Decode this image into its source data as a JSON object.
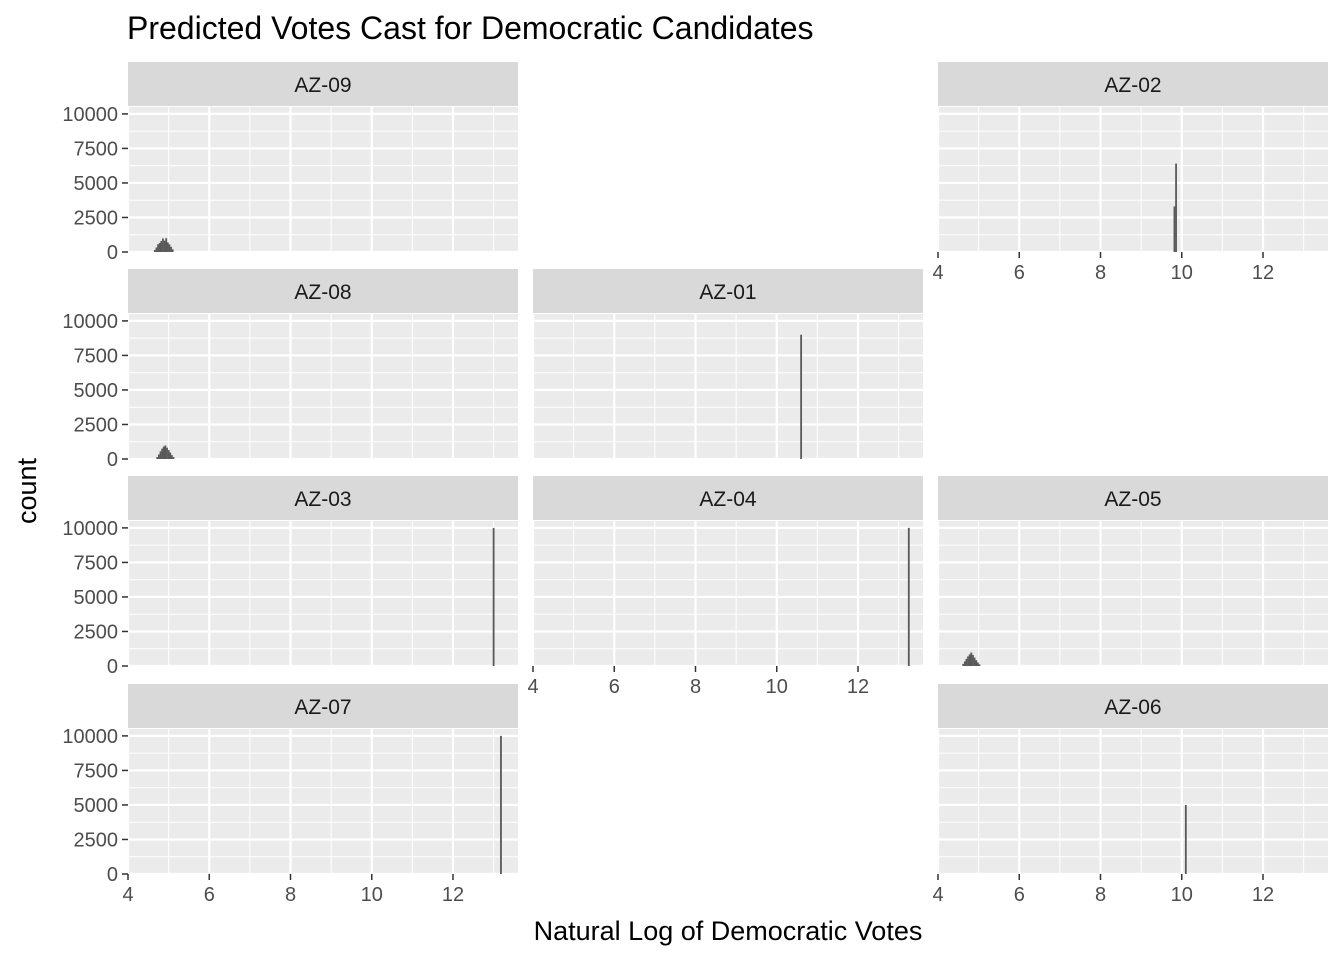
{
  "chart_data": {
    "type": "histogram",
    "title": "Predicted Votes Cast for Democratic Candidates",
    "xlabel": "Natural Log of Democratic Votes",
    "ylabel": "count",
    "xlim": [
      4,
      13.6
    ],
    "ylim": [
      0,
      10500
    ],
    "x_ticks": [
      4,
      6,
      8,
      10,
      12
    ],
    "x_minor": [
      5,
      7,
      9,
      11,
      13
    ],
    "y_ticks": [
      0,
      2500,
      5000,
      7500,
      10000
    ],
    "y_tick_labels": [
      "0",
      "2500",
      "5000",
      "7500",
      "10000"
    ],
    "y_minor": [
      1250,
      3750,
      6250,
      8750
    ],
    "grid": true,
    "layout": "facet_wrap 4 rows x 3 columns",
    "colors": {
      "panel_bg": "#EBEBEB",
      "strip_bg": "#D9D9D9",
      "grid": "#FFFFFF",
      "bars": "#595959"
    },
    "panels": [
      {
        "label": "AZ-09",
        "row": 0,
        "col": 0,
        "bars": [
          {
            "x": 4.66,
            "count": 140
          },
          {
            "x": 4.7,
            "count": 330
          },
          {
            "x": 4.74,
            "count": 560
          },
          {
            "x": 4.78,
            "count": 650
          },
          {
            "x": 4.82,
            "count": 800
          },
          {
            "x": 4.86,
            "count": 980
          },
          {
            "x": 4.9,
            "count": 820
          },
          {
            "x": 4.94,
            "count": 1000
          },
          {
            "x": 4.98,
            "count": 700
          },
          {
            "x": 5.02,
            "count": 560
          },
          {
            "x": 5.06,
            "count": 380
          },
          {
            "x": 5.1,
            "count": 200
          }
        ]
      },
      {
        "label": "AZ-02",
        "row": 0,
        "col": 2,
        "bars": [
          {
            "x": 9.82,
            "count": 3300
          },
          {
            "x": 9.86,
            "count": 6400
          }
        ]
      },
      {
        "label": "AZ-08",
        "row": 1,
        "col": 0,
        "bars": [
          {
            "x": 4.72,
            "count": 140
          },
          {
            "x": 4.76,
            "count": 330
          },
          {
            "x": 4.8,
            "count": 560
          },
          {
            "x": 4.84,
            "count": 750
          },
          {
            "x": 4.88,
            "count": 900
          },
          {
            "x": 4.92,
            "count": 980
          },
          {
            "x": 4.96,
            "count": 820
          },
          {
            "x": 5.0,
            "count": 650
          },
          {
            "x": 5.04,
            "count": 470
          },
          {
            "x": 5.08,
            "count": 280
          },
          {
            "x": 5.12,
            "count": 140
          }
        ]
      },
      {
        "label": "AZ-01",
        "row": 1,
        "col": 1,
        "bars": [
          {
            "x": 10.6,
            "count": 9000
          }
        ]
      },
      {
        "label": "AZ-03",
        "row": 2,
        "col": 0,
        "bars": [
          {
            "x": 13.0,
            "count": 10000
          }
        ]
      },
      {
        "label": "AZ-04",
        "row": 2,
        "col": 1,
        "bars": [
          {
            "x": 13.25,
            "count": 10000
          }
        ]
      },
      {
        "label": "AZ-05",
        "row": 2,
        "col": 2,
        "bars": [
          {
            "x": 4.62,
            "count": 140
          },
          {
            "x": 4.66,
            "count": 330
          },
          {
            "x": 4.7,
            "count": 520
          },
          {
            "x": 4.74,
            "count": 700
          },
          {
            "x": 4.78,
            "count": 840
          },
          {
            "x": 4.82,
            "count": 980
          },
          {
            "x": 4.86,
            "count": 800
          },
          {
            "x": 4.9,
            "count": 610
          },
          {
            "x": 4.94,
            "count": 420
          },
          {
            "x": 4.98,
            "count": 260
          },
          {
            "x": 5.02,
            "count": 120
          }
        ]
      },
      {
        "label": "AZ-07",
        "row": 3,
        "col": 0,
        "bars": [
          {
            "x": 13.18,
            "count": 10000
          }
        ]
      },
      {
        "label": "AZ-06",
        "row": 3,
        "col": 2,
        "bars": [
          {
            "x": 10.1,
            "count": 5000
          }
        ]
      }
    ]
  }
}
